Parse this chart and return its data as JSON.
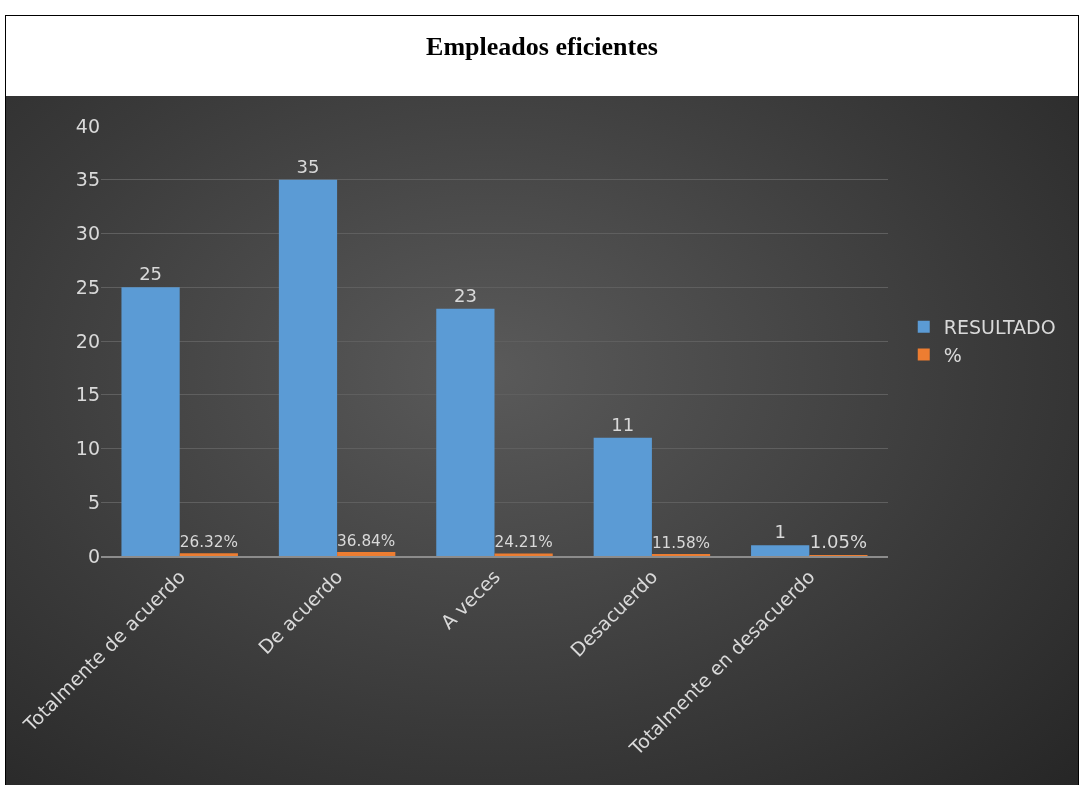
{
  "chart_data": {
    "type": "bar",
    "title": "Empleados eficientes",
    "categories": [
      "Totalmente de acuerdo",
      "De acuerdo",
      "A veces",
      "Desacuerdo",
      "Totalmente en desacuerdo"
    ],
    "series": [
      {
        "name": "RESULTADO",
        "color": "#5b9bd5",
        "values": [
          25,
          35,
          23,
          11,
          1
        ],
        "value_labels": [
          "25",
          "35",
          "23",
          "11",
          "1"
        ]
      },
      {
        "name": "%",
        "color": "#ed7d31",
        "values": [
          0.2632,
          0.3684,
          0.2421,
          0.1158,
          0.0105
        ],
        "value_labels": [
          "26.32%",
          "36.84%",
          "24.21%",
          "11.58%",
          "1.05%"
        ]
      }
    ],
    "ylim": [
      0,
      40
    ],
    "yticks": [
      0,
      5,
      10,
      15,
      20,
      25,
      30,
      35,
      40
    ],
    "grid": "y",
    "legend": "right"
  }
}
